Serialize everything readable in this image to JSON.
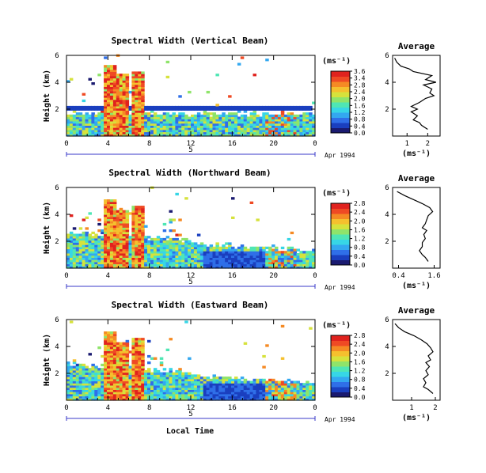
{
  "colors": {
    "scale": [
      "#1a1a70",
      "#1a3fbf",
      "#2f6fe8",
      "#33a8f0",
      "#37d6e6",
      "#4fe6b4",
      "#8fe46a",
      "#d6e23c",
      "#f5c02e",
      "#f58a24",
      "#ef4a24",
      "#e0221e"
    ],
    "accent": "#3a3ac8"
  },
  "units_label": "(ms⁻¹)",
  "xaxis": {
    "ticks": [
      "0",
      "4",
      "8",
      "12",
      "16",
      "20",
      "0"
    ],
    "date_tick": "5",
    "date_label": "Apr 1994",
    "xlabel": "Local Time"
  },
  "ylabel": "Height (km)",
  "chart_data": [
    {
      "type": "heatmap",
      "title": "Spectral Width (Vertical Beam)",
      "ylabel": "Height (km)",
      "xlim": [
        0,
        24
      ],
      "ylim": [
        0,
        6
      ],
      "yticks": [
        "6",
        "4",
        "2"
      ],
      "colorbar": {
        "label": "(ms⁻¹)",
        "ticks": [
          "3.6",
          "3.4",
          "2.8",
          "2.4",
          "2.0",
          "1.6",
          "1.2",
          "0.8",
          "0.4",
          "0.0"
        ]
      },
      "profile": {
        "title": "Average",
        "xlabel": "(ms⁻¹)",
        "xticks": [
          "1",
          "2"
        ],
        "xlim": [
          0.3,
          2.6
        ],
        "yticks": [
          "6",
          "4",
          "2"
        ],
        "ylim": [
          0,
          6
        ],
        "height": [
          0.5,
          0.8,
          1.0,
          1.2,
          1.5,
          1.8,
          2.0,
          2.2,
          2.5,
          2.8,
          3.0,
          3.2,
          3.5,
          3.8,
          4.0,
          4.2,
          4.5,
          4.8,
          5.0,
          5.2,
          5.5,
          5.8
        ],
        "value": [
          2.0,
          1.7,
          1.6,
          1.3,
          1.5,
          1.2,
          1.5,
          1.2,
          1.6,
          1.9,
          2.3,
          2.1,
          2.2,
          1.8,
          2.4,
          1.9,
          2.2,
          1.3,
          1.1,
          0.7,
          0.5,
          0.4
        ]
      }
    },
    {
      "type": "heatmap",
      "title": "Spectral Width (Northward Beam)",
      "ylabel": "Height (km)",
      "xlim": [
        0,
        24
      ],
      "ylim": [
        0,
        6
      ],
      "yticks": [
        "6",
        "4",
        "2"
      ],
      "colorbar": {
        "label": "(ms⁻¹)",
        "ticks": [
          "2.8",
          "2.4",
          "2.0",
          "1.6",
          "1.2",
          "0.8",
          "0.4",
          "0.0"
        ]
      },
      "profile": {
        "title": "Average",
        "xlabel": "(ms⁻¹)",
        "xticks": [
          "0.4",
          "1.6"
        ],
        "xlim": [
          0.2,
          1.8
        ],
        "yticks": [
          "6",
          "4",
          "2"
        ],
        "ylim": [
          0,
          6
        ],
        "height": [
          0.5,
          0.8,
          1.0,
          1.3,
          1.6,
          1.9,
          2.2,
          2.5,
          2.8,
          3.0,
          3.3,
          3.6,
          3.9,
          4.2,
          4.5,
          4.8,
          5.1,
          5.4,
          5.7
        ],
        "value": [
          1.4,
          1.3,
          1.2,
          1.1,
          1.2,
          1.2,
          1.3,
          1.25,
          1.35,
          1.2,
          1.3,
          1.35,
          1.4,
          1.55,
          1.45,
          1.2,
          0.9,
          0.6,
          0.35
        ]
      }
    },
    {
      "type": "heatmap",
      "title": "Spectral Width (Eastward Beam)",
      "ylabel": "Height (km)",
      "xlim": [
        0,
        24
      ],
      "ylim": [
        0,
        6
      ],
      "yticks": [
        "6",
        "4",
        "2"
      ],
      "colorbar": {
        "label": "(ms⁻¹)",
        "ticks": [
          "2.8",
          "2.4",
          "2.0",
          "1.6",
          "1.2",
          "0.8",
          "0.4",
          "0.0"
        ]
      },
      "profile": {
        "title": "Average",
        "xlabel": "(ms⁻¹)",
        "xticks": [
          "1",
          "2"
        ],
        "xlim": [
          0.2,
          2.2
        ],
        "yticks": [
          "6",
          "4",
          "2"
        ],
        "ylim": [
          0,
          6
        ],
        "height": [
          0.5,
          0.8,
          1.0,
          1.3,
          1.6,
          1.9,
          2.2,
          2.5,
          2.8,
          3.0,
          3.3,
          3.6,
          3.9,
          4.2,
          4.5,
          4.8,
          5.1,
          5.4,
          5.7
        ],
        "value": [
          1.9,
          1.7,
          1.5,
          1.6,
          1.5,
          1.7,
          1.6,
          1.75,
          1.6,
          1.8,
          1.7,
          1.9,
          1.8,
          1.65,
          1.4,
          1.1,
          0.7,
          0.45,
          0.3
        ]
      }
    }
  ]
}
